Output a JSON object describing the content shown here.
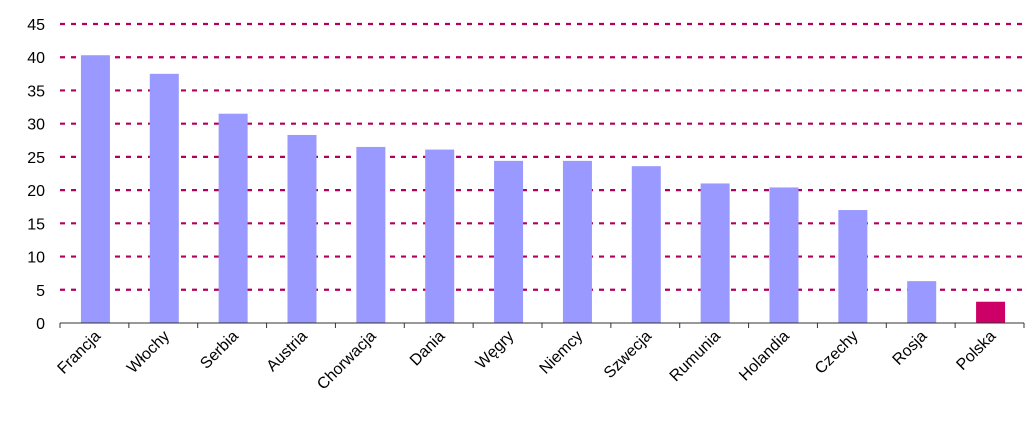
{
  "chart_data": {
    "type": "bar",
    "categories": [
      "Francja",
      "Włochy",
      "Serbia",
      "Austria",
      "Chorwacja",
      "Dania",
      "Węgry",
      "Niemcy",
      "Szwecja",
      "Rumunia",
      "Holandia",
      "Czechy",
      "Rosja",
      "Polska"
    ],
    "values": [
      40.3,
      37.5,
      31.5,
      28.3,
      26.5,
      26.1,
      24.4,
      24.4,
      23.6,
      21.0,
      20.4,
      17.0,
      6.3,
      3.2
    ],
    "highlight_index": 13,
    "bar_color": "#9999ff",
    "highlight_color": "#cc0066",
    "grid_color": "#b3005e",
    "ylim": [
      0,
      45
    ],
    "y_ticks": [
      0,
      5,
      10,
      15,
      20,
      25,
      30,
      35,
      40,
      45
    ],
    "grid": true,
    "legend": "none"
  }
}
